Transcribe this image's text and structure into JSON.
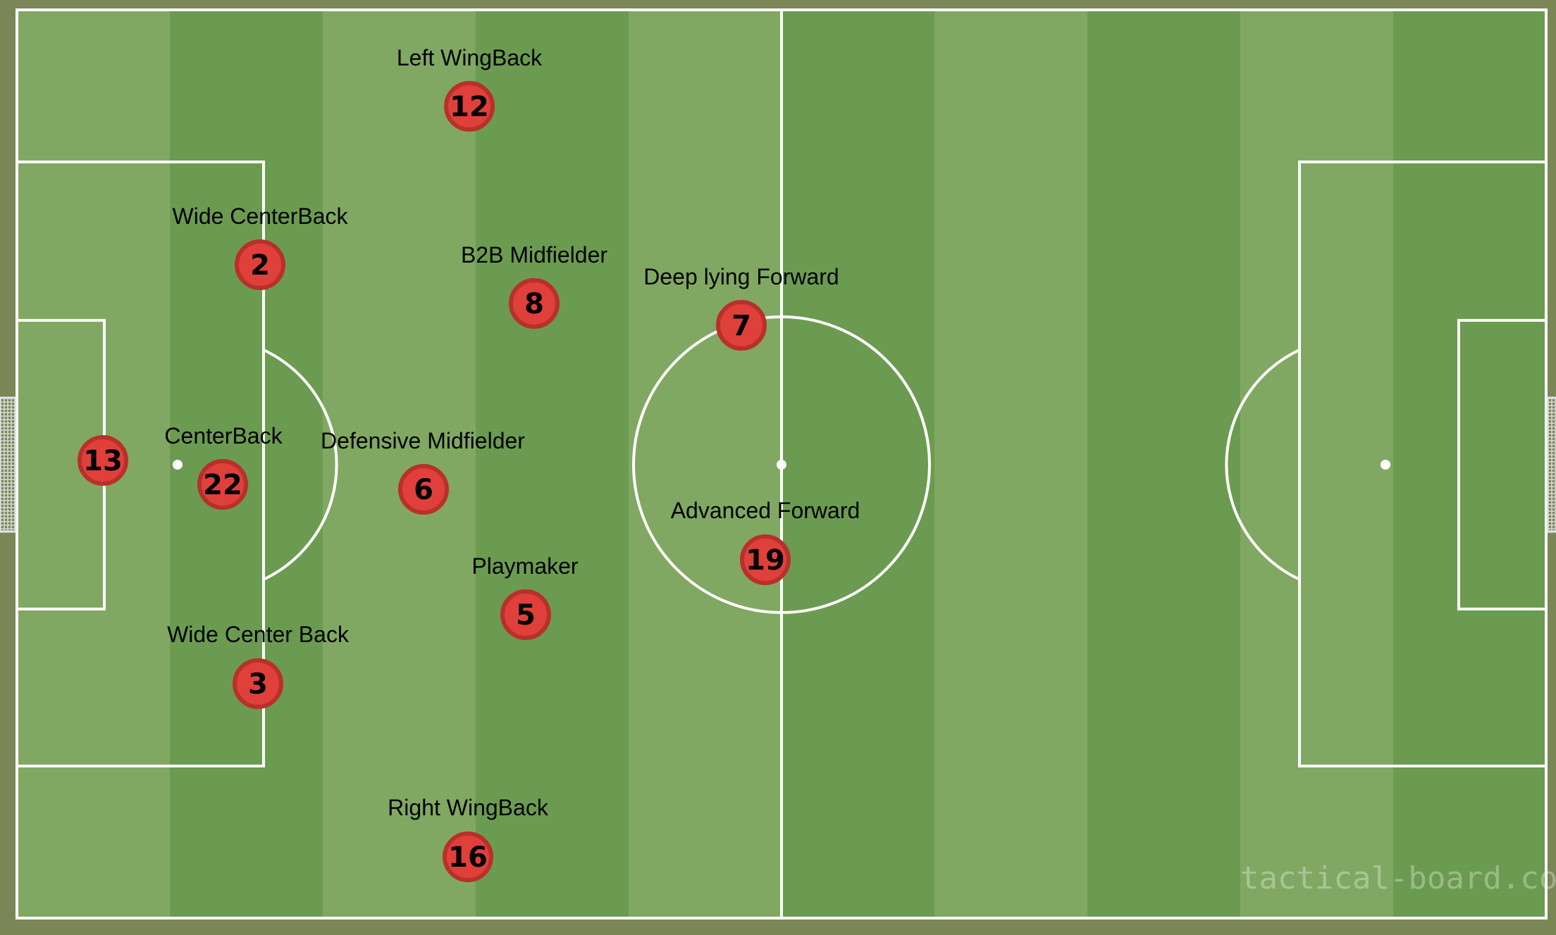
{
  "watermark": "tactical-board.com",
  "colors": {
    "background": "#7a8656",
    "stripe_light": "#81a862",
    "stripe_dark": "#6b9b50",
    "lines": "#ffffff",
    "player_fill": "#e0403a",
    "player_ring": "#b8302b"
  },
  "players": [
    {
      "id": "gk",
      "number": "13",
      "label": ""
    },
    {
      "id": "cb",
      "number": "22",
      "label": "CenterBack"
    },
    {
      "id": "lwcb",
      "number": "2",
      "label": "Wide CenterBack"
    },
    {
      "id": "rwcb",
      "number": "3",
      "label": "Wide Center Back"
    },
    {
      "id": "lwb",
      "number": "12",
      "label": "Left WingBack"
    },
    {
      "id": "rwb",
      "number": "16",
      "label": "Right WingBack"
    },
    {
      "id": "dm",
      "number": "6",
      "label": "Defensive Midfielder"
    },
    {
      "id": "b2b",
      "number": "8",
      "label": "B2B Midfielder"
    },
    {
      "id": "pm",
      "number": "5",
      "label": "Playmaker"
    },
    {
      "id": "dlf",
      "number": "7",
      "label": "Deep lying Forward"
    },
    {
      "id": "af",
      "number": "19",
      "label": "Advanced Forward"
    }
  ]
}
